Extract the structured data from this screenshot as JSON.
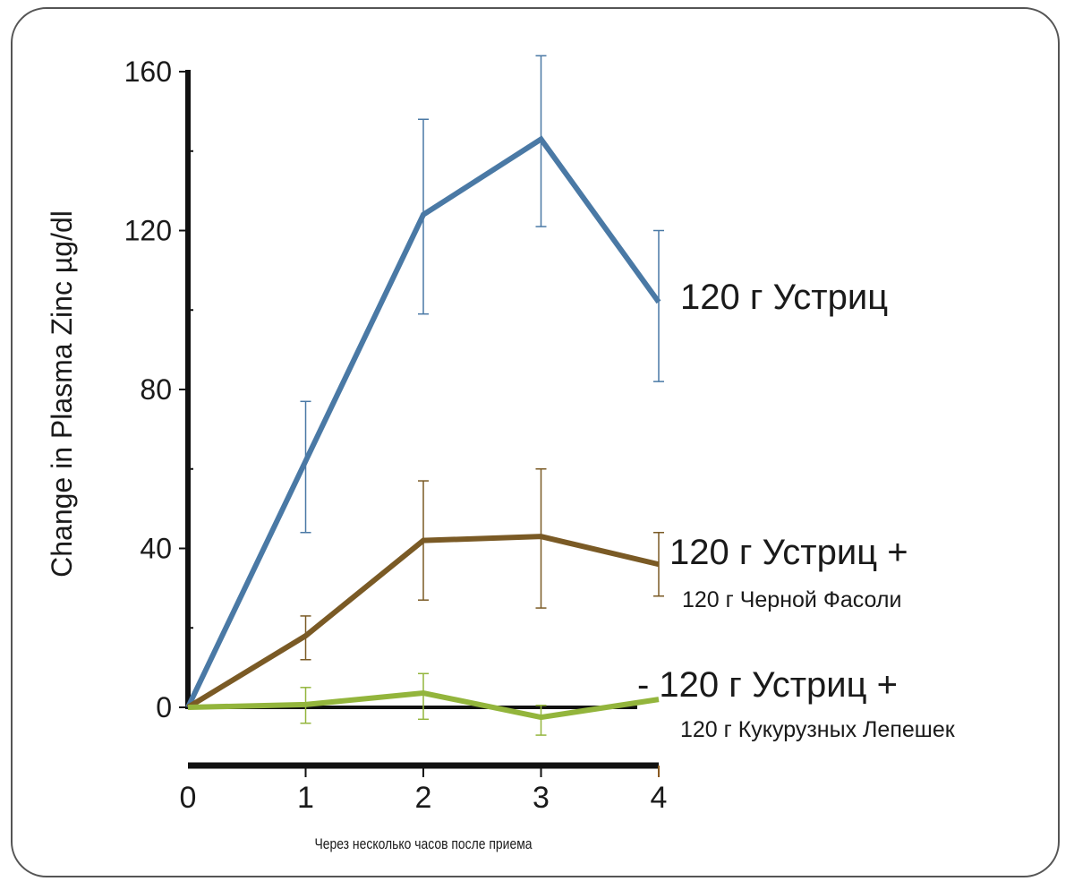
{
  "chart_data": {
    "type": "line",
    "title": "",
    "xlabel": "Через несколько часов после приема",
    "ylabel": "Change in Plasma Zinc µg/dl",
    "x": [
      0,
      1,
      2,
      3,
      4
    ],
    "xticks": [
      "0",
      "1",
      "2",
      "3",
      "4"
    ],
    "yticks": [
      "0",
      "40",
      "80",
      "120",
      "160"
    ],
    "ylim": [
      0,
      160
    ],
    "xlim": [
      0,
      4
    ],
    "grid": false,
    "series": [
      {
        "name": "120 г Устриц",
        "label_line1": "120 г Устриц",
        "label_line2": "",
        "color": "#4a79a5",
        "values": [
          0,
          62,
          124,
          143,
          102
        ],
        "err_high": [
          null,
          77,
          148,
          164,
          120
        ],
        "err_low": [
          null,
          44,
          99,
          121,
          82
        ]
      },
      {
        "name": "120 г Устриц + 120 г Черной Фасоли",
        "label_line1": "120 г Устриц +",
        "label_line2": "120 г Черной Фасоли",
        "color": "#7a5a25",
        "values": [
          0,
          18,
          42,
          43,
          36
        ],
        "err_high": [
          null,
          23,
          57,
          60,
          44
        ],
        "err_low": [
          null,
          12,
          27,
          25,
          28
        ]
      },
      {
        "name": "120 г Устриц + 120 г Кукурузных Лепешек",
        "label_line1": "- 120 г Устриц +",
        "label_line2": "120 г Кукурузных Лепешек",
        "color": "#93b53c",
        "values": [
          0,
          0.7,
          3.6,
          -2.5,
          2
        ],
        "err_high": [
          null,
          5,
          8.5,
          0.5,
          null
        ],
        "err_low": [
          null,
          -4,
          -3,
          -7,
          null
        ]
      }
    ]
  }
}
